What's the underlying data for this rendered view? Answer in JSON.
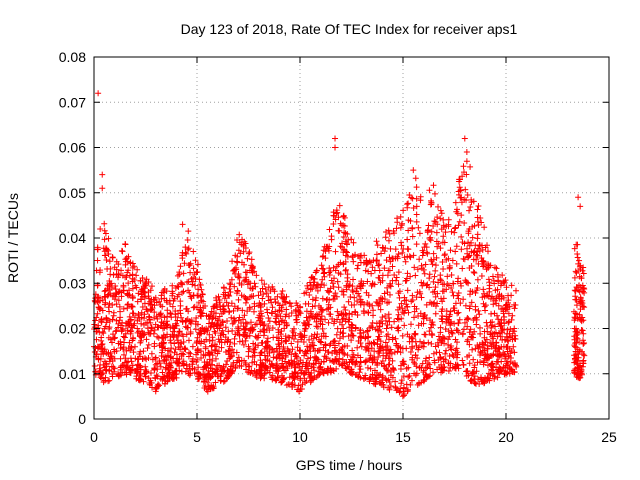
{
  "chart_data": {
    "type": "scatter",
    "title": "Day 123 of 2018, Rate Of TEC Index for receiver aps1",
    "xlabel": "GPS time / hours",
    "ylabel": "ROTI / TECUs",
    "xlim": [
      0,
      25
    ],
    "ylim": [
      0,
      0.08
    ],
    "xticks": [
      0,
      5,
      10,
      15,
      20,
      25
    ],
    "yticks": [
      0,
      0.01,
      0.02,
      0.03,
      0.04,
      0.05,
      0.06,
      0.07,
      0.08
    ],
    "xtick_labels": [
      "0",
      "5",
      "10",
      "15",
      "20",
      "25"
    ],
    "ytick_labels": [
      "0",
      "0.01",
      "0.02",
      "0.03",
      "0.04",
      "0.05",
      "0.06",
      "0.07",
      "0.08"
    ],
    "grid": true,
    "grid_style": "dotted",
    "marker": "+",
    "color": "#ff0000",
    "series": [
      {
        "x": [
          0.0,
          0.15,
          0.35,
          0.6,
          0.9,
          1.2,
          1.5,
          1.8,
          2.1,
          2.4,
          2.7,
          3.0,
          3.3,
          3.6,
          3.9,
          4.2,
          4.5,
          4.8,
          5.1,
          5.4,
          5.7,
          6.0,
          6.3,
          6.6,
          6.9,
          7.2,
          7.5,
          7.8,
          8.1,
          8.4,
          8.7,
          9.0,
          9.3,
          9.6,
          9.9,
          10.2,
          10.5,
          10.8,
          11.1,
          11.4,
          11.6,
          11.8,
          12.1,
          12.4,
          12.7,
          13.0,
          13.3,
          13.6,
          13.9,
          14.2,
          14.5,
          14.8,
          15.1,
          15.4,
          15.7,
          16.0,
          16.3,
          16.6,
          16.9,
          17.2,
          17.5,
          17.8,
          18.1,
          18.4,
          18.7,
          19.0,
          19.3,
          19.6,
          19.9,
          20.2,
          20.4,
          23.4,
          23.6,
          23.8
        ],
        "y": [
          0.016,
          0.026,
          0.018,
          0.012,
          0.022,
          0.028,
          0.018,
          0.016,
          0.02,
          0.015,
          0.022,
          0.012,
          0.018,
          0.014,
          0.02,
          0.025,
          0.012,
          0.016,
          0.01,
          0.014,
          0.016,
          0.02,
          0.025,
          0.03,
          0.033,
          0.024,
          0.016,
          0.014,
          0.012,
          0.015,
          0.018,
          0.016,
          0.014,
          0.012,
          0.01,
          0.014,
          0.016,
          0.018,
          0.024,
          0.028,
          0.03,
          0.022,
          0.02,
          0.022,
          0.02,
          0.016,
          0.018,
          0.015,
          0.016,
          0.02,
          0.018,
          0.022,
          0.024,
          0.026,
          0.028,
          0.03,
          0.032,
          0.034,
          0.026,
          0.022,
          0.024,
          0.03,
          0.022,
          0.018,
          0.016,
          0.014,
          0.016,
          0.014,
          0.016,
          0.018,
          0.02,
          0.02,
          0.026,
          0.014
        ]
      }
    ],
    "envelope": {
      "x": [
        0.0,
        0.5,
        1.0,
        1.5,
        2.0,
        2.5,
        3.0,
        3.5,
        4.0,
        4.5,
        5.0,
        5.5,
        6.0,
        6.5,
        7.0,
        7.5,
        8.0,
        8.5,
        9.0,
        9.5,
        10.0,
        10.5,
        11.0,
        11.5,
        12.0,
        12.5,
        13.0,
        13.5,
        14.0,
        14.5,
        15.0,
        15.5,
        16.0,
        16.5,
        17.0,
        17.5,
        18.0,
        18.5,
        19.0,
        19.5,
        20.0,
        20.5
      ],
      "low": [
        0.01,
        0.008,
        0.009,
        0.01,
        0.009,
        0.008,
        0.006,
        0.008,
        0.009,
        0.01,
        0.009,
        0.006,
        0.007,
        0.009,
        0.012,
        0.01,
        0.009,
        0.009,
        0.008,
        0.007,
        0.006,
        0.008,
        0.01,
        0.01,
        0.012,
        0.01,
        0.009,
        0.008,
        0.007,
        0.006,
        0.005,
        0.007,
        0.008,
        0.01,
        0.01,
        0.011,
        0.01,
        0.007,
        0.008,
        0.009,
        0.01,
        0.01
      ],
      "high": [
        0.038,
        0.044,
        0.034,
        0.04,
        0.034,
        0.032,
        0.028,
        0.029,
        0.03,
        0.043,
        0.036,
        0.022,
        0.028,
        0.032,
        0.041,
        0.039,
        0.031,
        0.03,
        0.029,
        0.027,
        0.026,
        0.031,
        0.034,
        0.045,
        0.049,
        0.04,
        0.036,
        0.038,
        0.041,
        0.044,
        0.046,
        0.055,
        0.049,
        0.052,
        0.044,
        0.046,
        0.062,
        0.05,
        0.042,
        0.034,
        0.031,
        0.03
      ]
    },
    "outliers": [
      {
        "x": 0.2,
        "y": 0.072
      },
      {
        "x": 0.4,
        "y": 0.054
      },
      {
        "x": 0.4,
        "y": 0.051
      },
      {
        "x": 11.7,
        "y": 0.062
      },
      {
        "x": 11.7,
        "y": 0.06
      },
      {
        "x": 15.5,
        "y": 0.055
      },
      {
        "x": 18.0,
        "y": 0.062
      },
      {
        "x": 18.1,
        "y": 0.059
      },
      {
        "x": 23.5,
        "y": 0.049
      },
      {
        "x": 23.6,
        "y": 0.047
      },
      {
        "x": 0.3,
        "y": 0.042
      },
      {
        "x": 4.3,
        "y": 0.043
      }
    ]
  }
}
